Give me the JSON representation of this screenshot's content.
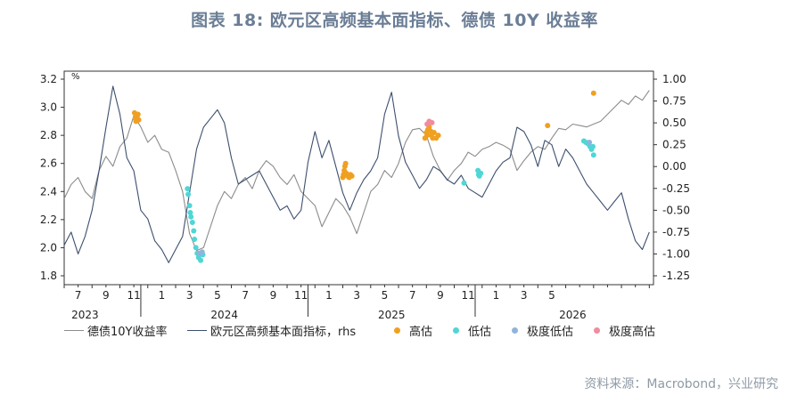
{
  "title": "图表 18: 欧元区高频基本面指标、德债 10Y 收益率",
  "source": "资料来源：Macrobond，兴业研究",
  "chart_data": {
    "type": "line",
    "left_axis": {
      "unit": "%",
      "ticks": [
        "3.2",
        "3.0",
        "2.8",
        "2.6",
        "2.4",
        "2.2",
        "2.0",
        "1.8"
      ],
      "ylim": [
        1.8,
        3.2
      ]
    },
    "right_axis": {
      "ticks": [
        "1.00",
        "0.75",
        "0.50",
        "0.25",
        "0.00",
        "-0.25",
        "-0.50",
        "-0.75",
        "-1.00",
        "-1.25"
      ],
      "ylim": [
        -1.25,
        1.0
      ]
    },
    "x_month_ticks": [
      "7",
      "9",
      "11",
      "1",
      "3",
      "5",
      "7",
      "9",
      "11",
      "1",
      "3",
      "5",
      "7",
      "9",
      "11",
      "1",
      "3",
      "5"
    ],
    "x_year_labels": [
      "2023",
      "2024",
      "2025",
      "2026"
    ],
    "colors": {
      "bund": "#8c8c8c",
      "indicator": "#3d4f6e",
      "high": "#f0a020",
      "low": "#4fd6d6",
      "extreme_low": "#8fb4dc",
      "extreme_high": "#f08c9c"
    },
    "series": [
      {
        "name": "德债10Y收益率",
        "axis": "left",
        "months": [
          0,
          0.5,
          1,
          1.5,
          2,
          2.5,
          3,
          3.5,
          4,
          4.5,
          5,
          5.5,
          6,
          6.5,
          7,
          7.5,
          8,
          8.5,
          9,
          9.5,
          10,
          10.5,
          11,
          11.5,
          12,
          12.5,
          13,
          13.5,
          14,
          14.5,
          15,
          15.5,
          16,
          16.5,
          17,
          17.5,
          18,
          18.5,
          19,
          19.5,
          20,
          20.5,
          21,
          21.5,
          22,
          22.5,
          23,
          23.5,
          24,
          24.5,
          25,
          25.5,
          26,
          26.5,
          27,
          27.5,
          28,
          28.5,
          29,
          29.5,
          30,
          30.5,
          31,
          31.5,
          32,
          32.5,
          33,
          33.5,
          34,
          34.5,
          35,
          35.5,
          36,
          36.5,
          37,
          37.5,
          38,
          38.5,
          39,
          39.5,
          40,
          40.5,
          41,
          41.5,
          42
        ],
        "values": [
          2.35,
          2.45,
          2.5,
          2.4,
          2.35,
          2.55,
          2.65,
          2.58,
          2.72,
          2.78,
          2.94,
          2.86,
          2.75,
          2.8,
          2.7,
          2.68,
          2.55,
          2.4,
          2.1,
          1.98,
          2.0,
          2.15,
          2.3,
          2.4,
          2.35,
          2.45,
          2.5,
          2.42,
          2.55,
          2.62,
          2.58,
          2.5,
          2.45,
          2.52,
          2.4,
          2.35,
          2.3,
          2.15,
          2.25,
          2.35,
          2.3,
          2.22,
          2.1,
          2.25,
          2.4,
          2.45,
          2.55,
          2.5,
          2.6,
          2.75,
          2.84,
          2.85,
          2.8,
          2.65,
          2.55,
          2.48,
          2.55,
          2.6,
          2.68,
          2.65,
          2.7,
          2.72,
          2.75,
          2.73,
          2.7,
          2.55,
          2.62,
          2.68,
          2.72,
          2.7,
          2.78,
          2.85,
          2.84,
          2.88,
          2.87,
          2.86,
          2.88,
          2.9,
          2.95,
          3.0,
          3.05,
          3.02,
          3.08,
          3.05,
          3.12
        ]
      },
      {
        "name": "欧元区高频基本面指标，rhs",
        "axis": "right",
        "months": [
          0,
          0.5,
          1,
          1.5,
          2,
          2.5,
          3,
          3.5,
          4,
          4.5,
          5,
          5.5,
          6,
          6.5,
          7,
          7.5,
          8,
          8.5,
          9,
          9.5,
          10,
          10.5,
          11,
          11.5,
          12,
          12.5,
          13,
          13.5,
          14,
          14.5,
          15,
          15.5,
          16,
          16.5,
          17,
          17.5,
          18,
          18.5,
          19,
          19.5,
          20,
          20.5,
          21,
          21.5,
          22,
          22.5,
          23,
          23.5,
          24,
          24.5,
          25,
          25.5,
          26,
          26.5,
          27,
          27.5,
          28,
          28.5,
          29,
          29.5,
          30,
          30.5,
          31,
          31.5,
          32,
          32.5,
          33,
          33.5,
          34,
          34.5,
          35,
          35.5,
          36,
          36.5,
          37,
          37.5,
          38,
          38.5,
          39,
          39.5,
          40,
          40.5,
          41,
          41.5,
          42
        ],
        "values": [
          -0.9,
          -0.75,
          -1.0,
          -0.8,
          -0.5,
          -0.05,
          0.45,
          0.92,
          0.6,
          0.1,
          -0.05,
          -0.5,
          -0.6,
          -0.85,
          -0.95,
          -1.1,
          -0.95,
          -0.8,
          -0.3,
          0.2,
          0.45,
          0.55,
          0.65,
          0.5,
          0.1,
          -0.2,
          -0.15,
          -0.1,
          -0.05,
          -0.2,
          -0.35,
          -0.5,
          -0.45,
          -0.6,
          -0.5,
          0.05,
          0.4,
          0.1,
          0.3,
          0.0,
          -0.3,
          -0.5,
          -0.3,
          -0.15,
          -0.05,
          0.1,
          0.6,
          0.85,
          0.35,
          0.05,
          -0.1,
          -0.25,
          -0.15,
          0.0,
          -0.05,
          -0.15,
          -0.2,
          -0.1,
          -0.25,
          -0.3,
          -0.35,
          -0.2,
          -0.05,
          0.05,
          0.1,
          0.45,
          0.4,
          0.25,
          0.0,
          0.3,
          0.25,
          0.0,
          0.2,
          0.1,
          -0.05,
          -0.2,
          -0.3,
          -0.4,
          -0.5,
          -0.4,
          -0.3,
          -0.6,
          -0.85,
          -0.95,
          -0.75
        ]
      }
    ],
    "markers": [
      {
        "name": "高估",
        "color_key": "high",
        "points": [
          [
            5.05,
            2.96
          ],
          [
            5.1,
            2.92
          ],
          [
            5.15,
            2.9
          ],
          [
            5.2,
            2.93
          ],
          [
            5.25,
            2.94
          ],
          [
            5.3,
            2.95
          ],
          [
            5.35,
            2.91
          ],
          [
            20.0,
            2.5
          ],
          [
            20.05,
            2.52
          ],
          [
            20.1,
            2.55
          ],
          [
            20.15,
            2.58
          ],
          [
            20.2,
            2.6
          ],
          [
            20.25,
            2.53
          ],
          [
            20.35,
            2.51
          ],
          [
            20.45,
            2.5
          ],
          [
            20.55,
            2.52
          ],
          [
            20.65,
            2.51
          ],
          [
            25.9,
            2.78
          ],
          [
            26.0,
            2.82
          ],
          [
            26.05,
            2.8
          ],
          [
            26.1,
            2.84
          ],
          [
            26.2,
            2.86
          ],
          [
            26.3,
            2.83
          ],
          [
            26.35,
            2.8
          ],
          [
            26.45,
            2.78
          ],
          [
            26.55,
            2.82
          ],
          [
            26.7,
            2.78
          ],
          [
            26.85,
            2.8
          ],
          [
            34.7,
            2.87
          ],
          [
            38.0,
            3.1
          ]
        ]
      },
      {
        "name": "低估",
        "color_key": "low",
        "points": [
          [
            8.85,
            2.42
          ],
          [
            8.9,
            2.38
          ],
          [
            9.0,
            2.3
          ],
          [
            9.05,
            2.25
          ],
          [
            9.1,
            2.22
          ],
          [
            9.2,
            2.18
          ],
          [
            9.3,
            2.12
          ],
          [
            9.35,
            2.06
          ],
          [
            9.45,
            2.0
          ],
          [
            9.55,
            1.96
          ],
          [
            9.65,
            1.93
          ],
          [
            9.8,
            1.91
          ],
          [
            9.95,
            1.95
          ],
          [
            28.7,
            2.46
          ],
          [
            29.7,
            2.55
          ],
          [
            29.75,
            2.52
          ],
          [
            29.8,
            2.51
          ],
          [
            29.9,
            2.53
          ],
          [
            37.3,
            2.76
          ],
          [
            37.45,
            2.75
          ],
          [
            37.6,
            2.74
          ],
          [
            37.75,
            2.72
          ],
          [
            37.85,
            2.7
          ],
          [
            37.95,
            2.72
          ],
          [
            38.0,
            2.66
          ]
        ]
      },
      {
        "name": "极度低估",
        "color_key": "extreme_low",
        "points": [
          [
            9.7,
            1.96
          ],
          [
            9.9,
            1.97
          ],
          [
            37.7,
            2.75
          ]
        ]
      },
      {
        "name": "极度高估",
        "color_key": "extreme_high",
        "points": [
          [
            26.05,
            2.88
          ],
          [
            26.2,
            2.9
          ],
          [
            26.4,
            2.89
          ]
        ]
      }
    ]
  }
}
